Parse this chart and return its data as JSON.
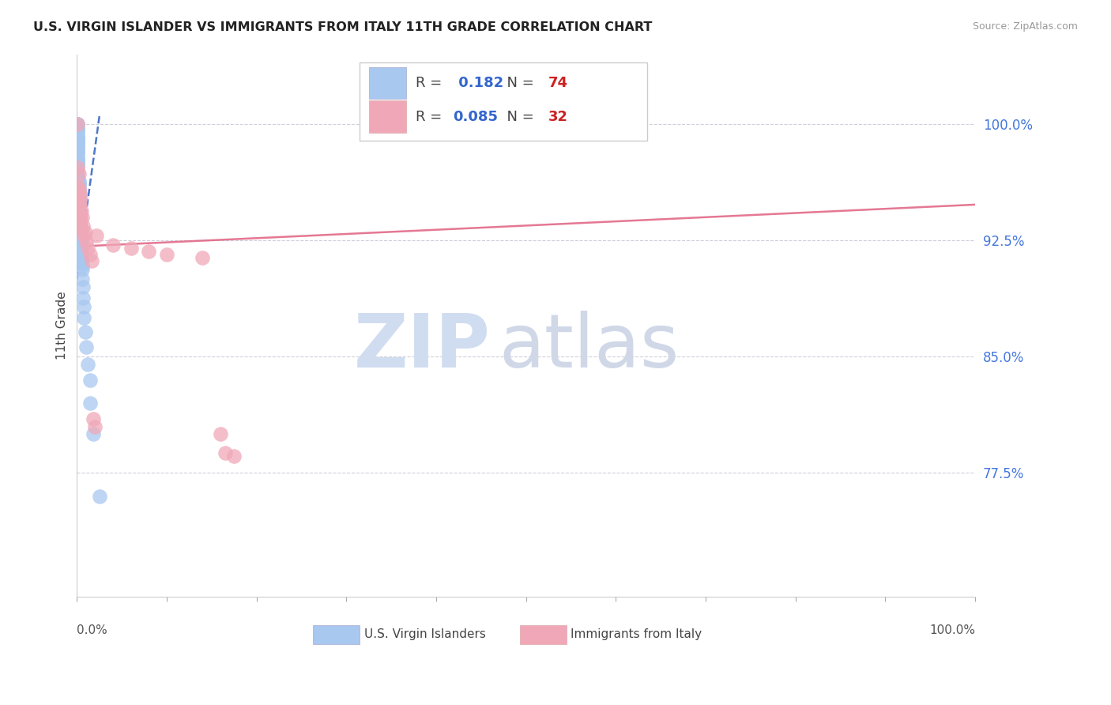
{
  "title": "U.S. VIRGIN ISLANDER VS IMMIGRANTS FROM ITALY 11TH GRADE CORRELATION CHART",
  "source": "Source: ZipAtlas.com",
  "ylabel": "11th Grade",
  "legend1_label": "U.S. Virgin Islanders",
  "legend2_label": "Immigrants from Italy",
  "R1": 0.182,
  "N1": 74,
  "R2": 0.085,
  "N2": 32,
  "blue_color": "#A8C8F0",
  "pink_color": "#F0A8B8",
  "blue_line_color": "#2255BB",
  "pink_line_color": "#E06080",
  "yticks": [
    0.775,
    0.85,
    0.925,
    1.0
  ],
  "ytick_labels": [
    "77.5%",
    "85.0%",
    "92.5%",
    "100.0%"
  ],
  "xlim": [
    0.0,
    1.0
  ],
  "ylim": [
    0.695,
    1.045
  ],
  "blue_x": [
    0.001,
    0.001,
    0.001,
    0.001,
    0.001,
    0.001,
    0.001,
    0.001,
    0.001,
    0.001,
    0.001,
    0.001,
    0.001,
    0.001,
    0.001,
    0.001,
    0.001,
    0.001,
    0.001,
    0.001,
    0.001,
    0.001,
    0.001,
    0.001,
    0.001,
    0.001,
    0.001,
    0.001,
    0.001,
    0.001,
    0.002,
    0.002,
    0.002,
    0.002,
    0.002,
    0.002,
    0.002,
    0.002,
    0.002,
    0.002,
    0.002,
    0.002,
    0.002,
    0.003,
    0.003,
    0.003,
    0.003,
    0.003,
    0.003,
    0.003,
    0.004,
    0.004,
    0.004,
    0.004,
    0.004,
    0.004,
    0.005,
    0.005,
    0.005,
    0.005,
    0.006,
    0.006,
    0.006,
    0.007,
    0.007,
    0.008,
    0.008,
    0.009,
    0.01,
    0.012,
    0.015,
    0.015,
    0.018,
    0.025
  ],
  "blue_y": [
    1.0,
    1.0,
    0.998,
    0.997,
    0.996,
    0.995,
    0.993,
    0.992,
    0.991,
    0.99,
    0.989,
    0.988,
    0.987,
    0.986,
    0.985,
    0.984,
    0.983,
    0.982,
    0.981,
    0.98,
    0.978,
    0.977,
    0.976,
    0.975,
    0.974,
    0.973,
    0.97,
    0.968,
    0.966,
    0.964,
    0.963,
    0.962,
    0.961,
    0.96,
    0.958,
    0.957,
    0.956,
    0.954,
    0.952,
    0.95,
    0.948,
    0.946,
    0.944,
    0.942,
    0.94,
    0.938,
    0.936,
    0.934,
    0.932,
    0.93,
    0.928,
    0.926,
    0.924,
    0.922,
    0.92,
    0.918,
    0.916,
    0.914,
    0.912,
    0.91,
    0.908,
    0.906,
    0.9,
    0.895,
    0.888,
    0.882,
    0.875,
    0.866,
    0.856,
    0.845,
    0.835,
    0.82,
    0.8,
    0.76
  ],
  "pink_x": [
    0.001,
    0.001,
    0.001,
    0.002,
    0.002,
    0.002,
    0.003,
    0.003,
    0.003,
    0.004,
    0.004,
    0.005,
    0.005,
    0.006,
    0.007,
    0.008,
    0.009,
    0.01,
    0.012,
    0.015,
    0.016,
    0.018,
    0.02,
    0.022,
    0.04,
    0.06,
    0.08,
    0.1,
    0.14,
    0.16,
    0.165,
    0.175
  ],
  "pink_y": [
    1.0,
    0.972,
    0.96,
    0.968,
    0.958,
    0.95,
    0.955,
    0.948,
    0.942,
    0.952,
    0.938,
    0.944,
    0.932,
    0.94,
    0.934,
    0.928,
    0.93,
    0.924,
    0.92,
    0.916,
    0.912,
    0.81,
    0.805,
    0.928,
    0.922,
    0.92,
    0.918,
    0.916,
    0.914,
    0.8,
    0.788,
    0.786
  ],
  "watermark_zip": "ZIP",
  "watermark_atlas": "atlas",
  "watermark_color_zip": "#D0DCF0",
  "watermark_color_atlas": "#D0D8E8"
}
